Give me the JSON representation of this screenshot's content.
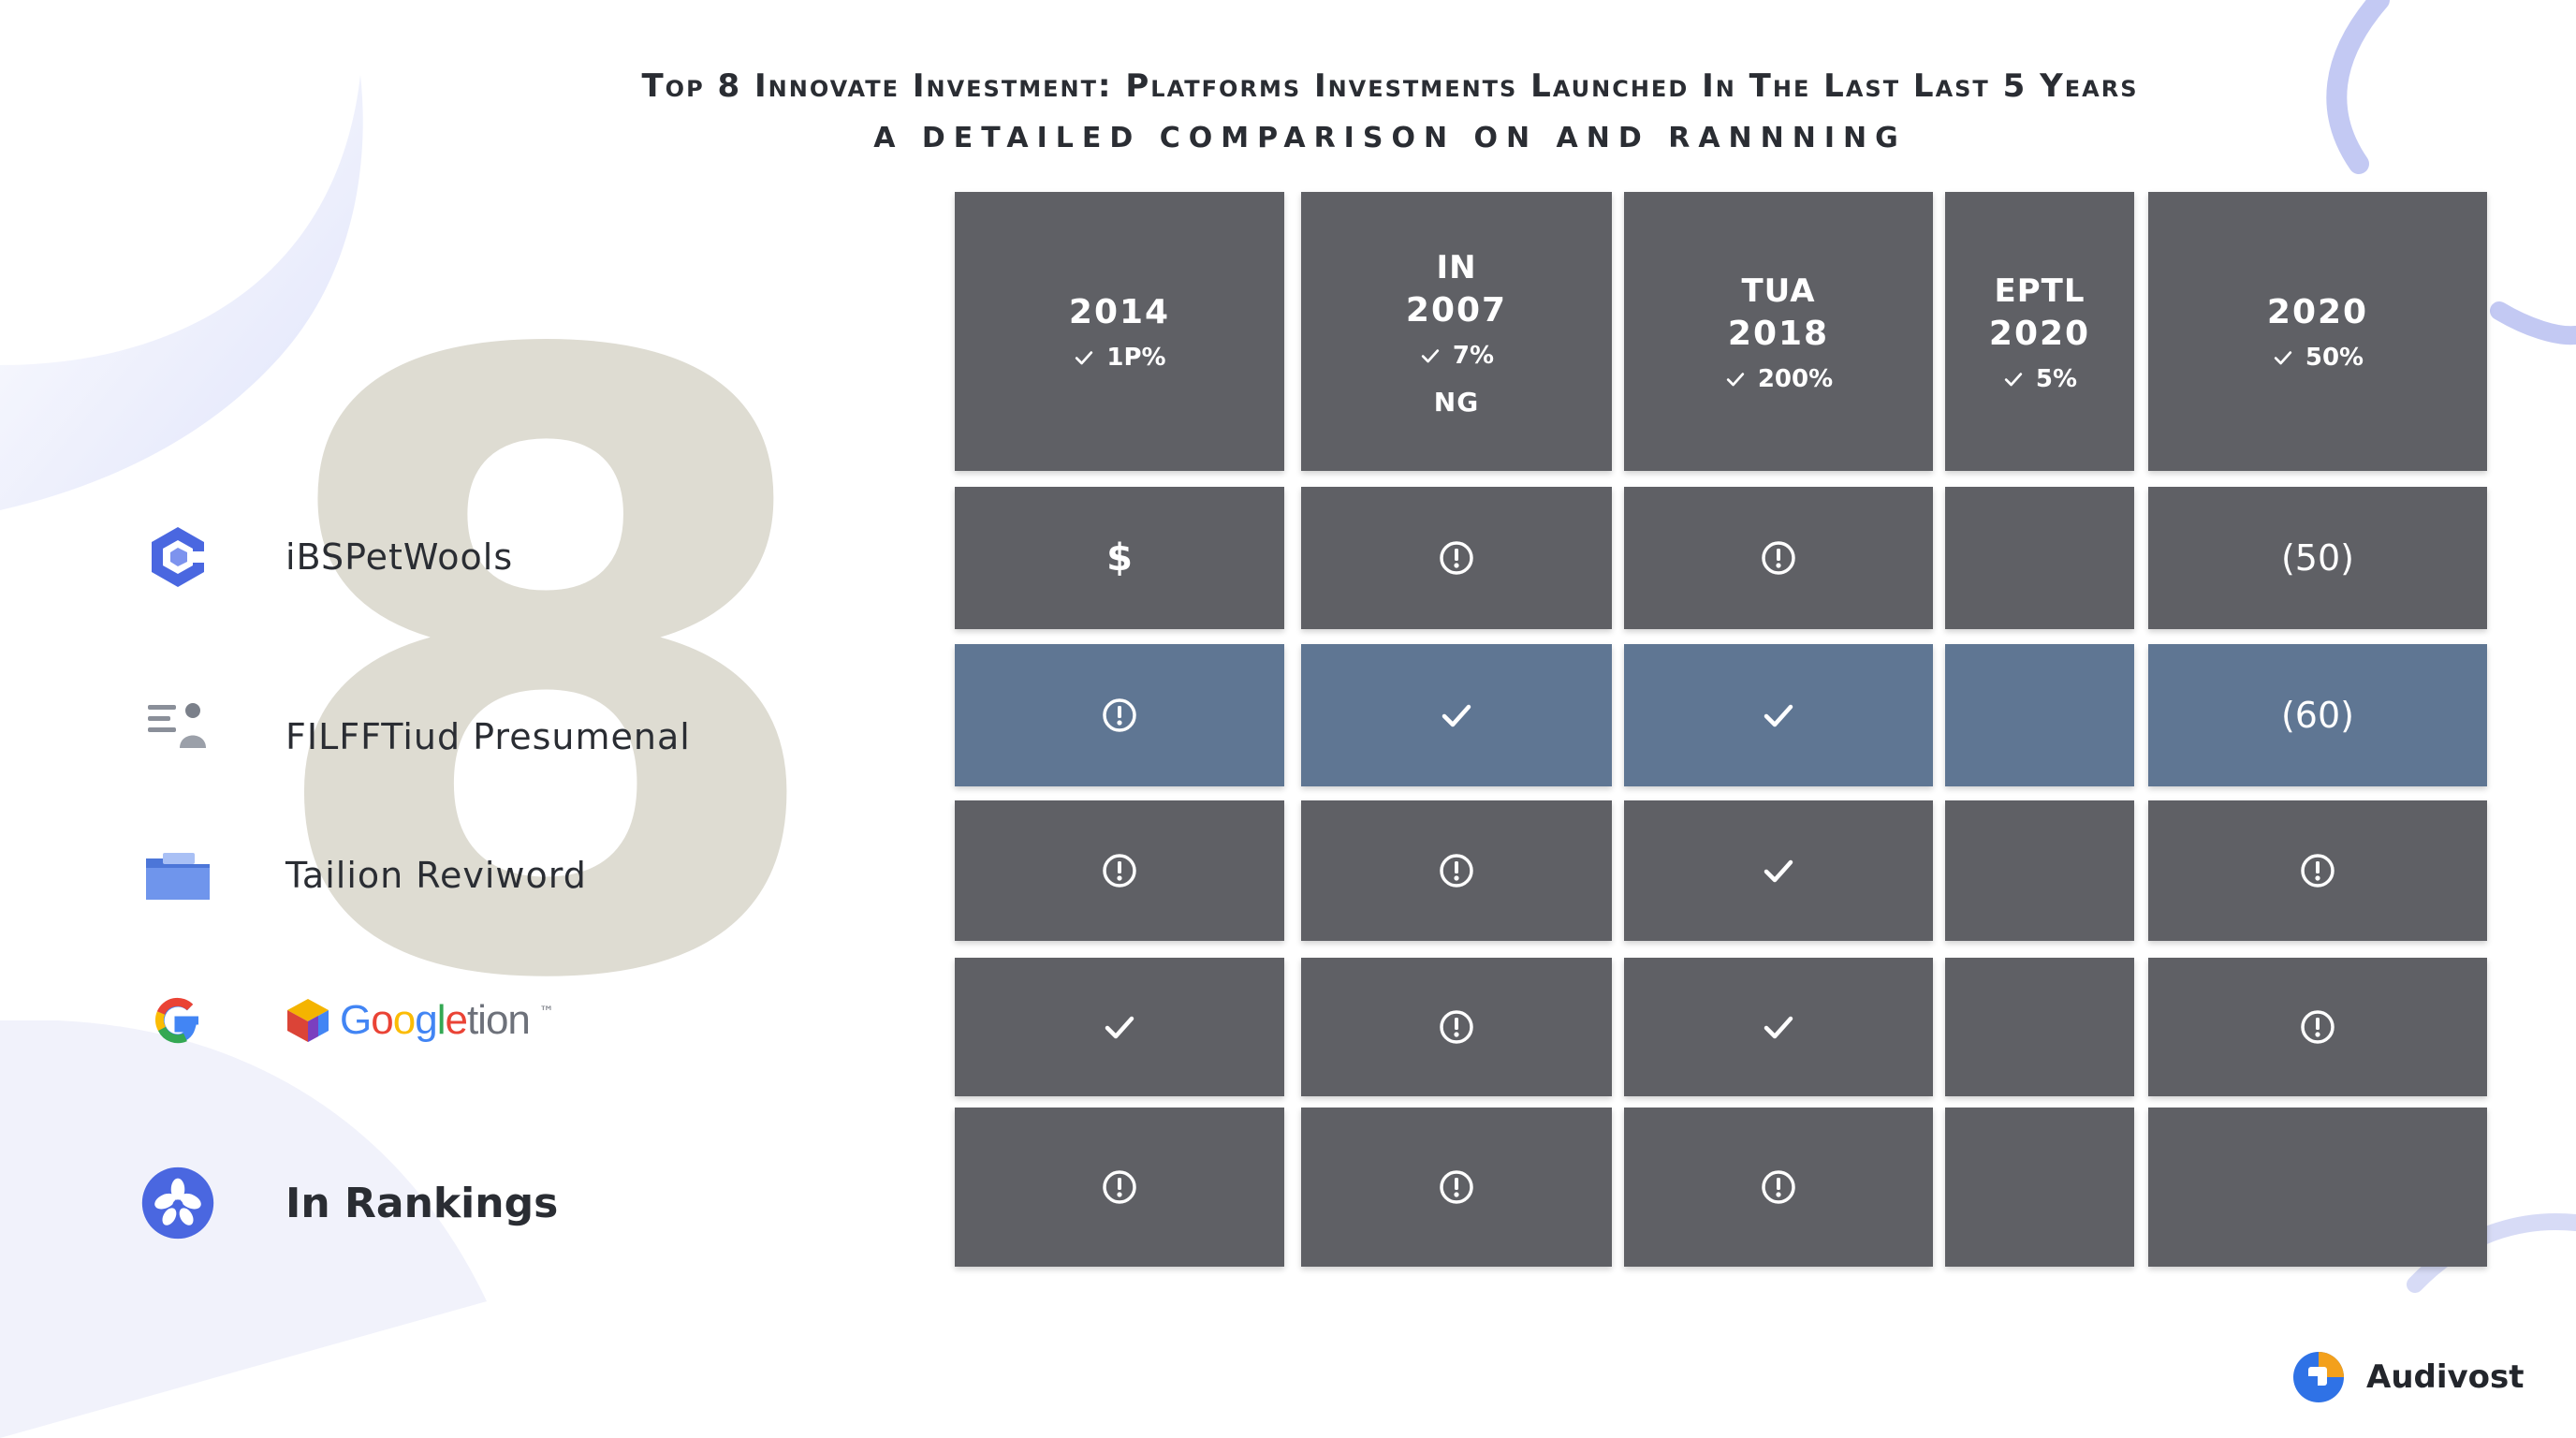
{
  "header": {
    "title": "Top 8 Innovate Investment: Platforms Investments Launched In The Last Last 5 Years",
    "subtitle": "A DETAILED COMPARISON  ON AND RANNNING"
  },
  "feature_number": "8",
  "colors": {
    "cell": "#5f6065",
    "highlight_row": "#5f7693",
    "accent_blue": "#3c6df0",
    "deco_lavender": "#e9ebfb"
  },
  "sidebar": {
    "items": [
      {
        "label": "iBSPetWools",
        "icon": "hexagon-c-logo-icon"
      },
      {
        "label": "FILFFTiud Presumenal",
        "icon": "list-person-icon"
      },
      {
        "label": "Tailion Reviword",
        "icon": "folder-icon"
      },
      {
        "label": "Googletion",
        "icon": "google-g-icon",
        "word": "Googletion",
        "trademark": "™"
      },
      {
        "label": "In Rankings",
        "icon": "flower-badge-icon"
      }
    ]
  },
  "table": {
    "columns": [
      {
        "top": "",
        "year": "2014",
        "pct": "1P%",
        "extra": ""
      },
      {
        "top": "IN",
        "year": "2007",
        "pct": "7%",
        "extra": "NG"
      },
      {
        "top": "TUA",
        "year": "2018",
        "pct": "200%",
        "extra": ""
      },
      {
        "top": "EPTL",
        "year": "2020",
        "pct": "5%",
        "extra": ""
      },
      {
        "top": "",
        "year": "2020",
        "pct": "50%",
        "extra": ""
      }
    ],
    "rows": [
      {
        "highlight": false,
        "cells": [
          {
            "kind": "text",
            "text": "$"
          },
          {
            "kind": "info"
          },
          {
            "kind": "info"
          },
          {
            "kind": "empty"
          },
          {
            "kind": "text",
            "text": "(50)"
          }
        ]
      },
      {
        "highlight": true,
        "cells": [
          {
            "kind": "info"
          },
          {
            "kind": "check"
          },
          {
            "kind": "check"
          },
          {
            "kind": "empty"
          },
          {
            "kind": "text",
            "text": "(60)"
          }
        ]
      },
      {
        "highlight": false,
        "cells": [
          {
            "kind": "info"
          },
          {
            "kind": "info"
          },
          {
            "kind": "check"
          },
          {
            "kind": "empty"
          },
          {
            "kind": "info"
          }
        ]
      },
      {
        "highlight": false,
        "cells": [
          {
            "kind": "check"
          },
          {
            "kind": "info"
          },
          {
            "kind": "check"
          },
          {
            "kind": "empty"
          },
          {
            "kind": "info"
          }
        ]
      },
      {
        "highlight": false,
        "cells": [
          {
            "kind": "info"
          },
          {
            "kind": "info"
          },
          {
            "kind": "info"
          },
          {
            "kind": "empty"
          },
          {
            "kind": "empty"
          }
        ]
      }
    ]
  },
  "brand": {
    "name": "Audivost",
    "icon": "audivost-logo-icon"
  }
}
